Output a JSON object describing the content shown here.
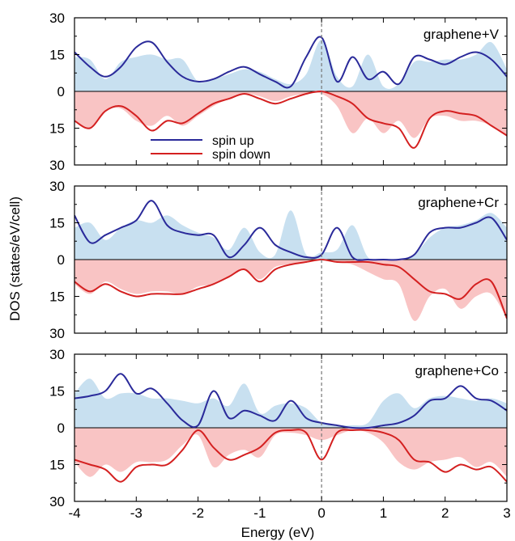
{
  "figure": {
    "ylabel": "DOS (states/eV/cell)",
    "xlabel": "Energy (eV)",
    "x_ticks": [
      "-4",
      "-3",
      "-2",
      "-1",
      "0",
      "1",
      "2",
      "3"
    ],
    "y_ticks": [
      "30",
      "15",
      "0",
      "15",
      "30"
    ],
    "legend": [
      {
        "label": "spin up",
        "color": "#2a2a9a"
      },
      {
        "label": "spin down",
        "color": "#d42020"
      }
    ],
    "colors": {
      "spin_up_line": "#2a2a9a",
      "spin_down_line": "#d42020",
      "up_fill": "#c8e0f0",
      "down_fill": "#f9c4c4",
      "fermi_line": "#777777"
    }
  },
  "chart_data": [
    {
      "type": "area",
      "label": "graphene+V",
      "xlim": [
        -4,
        3
      ],
      "ylim": [
        -30,
        30
      ],
      "y_tick_values": [
        30,
        15,
        0,
        -15,
        -30
      ],
      "x": [
        -4,
        -3.75,
        -3.5,
        -3.25,
        -3,
        -2.75,
        -2.5,
        -2.25,
        -2,
        -1.75,
        -1.5,
        -1.25,
        -1,
        -0.75,
        -0.5,
        -0.25,
        0,
        0.25,
        0.5,
        0.75,
        1,
        1.25,
        1.5,
        1.75,
        2,
        2.25,
        2.5,
        2.75,
        3
      ],
      "series": [
        {
          "name": "spin up",
          "values": [
            16,
            10,
            6,
            10,
            18,
            20,
            12,
            6,
            4,
            5,
            8,
            10,
            7,
            4,
            2,
            14,
            22,
            4,
            14,
            5,
            8,
            3,
            14,
            13,
            11,
            14,
            16,
            13,
            6
          ]
        },
        {
          "name": "spin down",
          "values": [
            -12,
            -15,
            -8,
            -6,
            -10,
            -16,
            -12,
            -13,
            -9,
            -5,
            -3,
            -1,
            -3,
            -5,
            -3,
            -1,
            0,
            -2,
            -5,
            -11,
            -13,
            -15,
            -23,
            -11,
            -8,
            -9,
            -10,
            -14,
            -18
          ]
        }
      ],
      "shaded_series": [
        {
          "values": [
            14,
            13,
            5,
            12,
            14,
            15,
            13,
            13,
            4,
            5,
            7,
            9,
            8,
            5,
            3,
            7,
            21,
            6,
            2,
            15,
            2,
            3,
            12,
            12,
            13,
            13,
            15,
            20,
            9
          ]
        },
        {
          "values": [
            -12,
            -15,
            -8,
            -7,
            -12,
            -14,
            -10,
            -14,
            -10,
            -6,
            -3,
            -1,
            -2,
            -4,
            -2,
            -1,
            -1,
            -6,
            -17,
            -11,
            -17,
            -12,
            -19,
            -11,
            -10,
            -12,
            -12,
            -14,
            -18
          ]
        }
      ]
    },
    {
      "type": "area",
      "label": "graphene+Cr",
      "xlim": [
        -4,
        3
      ],
      "ylim": [
        -30,
        30
      ],
      "y_tick_values": [
        30,
        15,
        0,
        -15,
        -30
      ],
      "x": [
        -4,
        -3.75,
        -3.5,
        -3.25,
        -3,
        -2.75,
        -2.5,
        -2.25,
        -2,
        -1.75,
        -1.5,
        -1.25,
        -1,
        -0.75,
        -0.5,
        -0.25,
        0,
        0.25,
        0.5,
        0.75,
        1,
        1.25,
        1.5,
        1.75,
        2,
        2.25,
        2.5,
        2.75,
        3
      ],
      "series": [
        {
          "name": "spin up",
          "values": [
            18,
            7,
            10,
            13,
            16,
            24,
            14,
            11,
            10,
            10,
            1,
            6,
            13,
            6,
            3,
            1,
            2,
            13,
            1,
            0,
            0,
            0,
            2,
            11,
            13,
            13,
            15,
            17,
            8
          ]
        },
        {
          "name": "spin down",
          "values": [
            -9,
            -13,
            -10,
            -13,
            -15,
            -14,
            -14,
            -14,
            -12,
            -10,
            -7,
            -4,
            -9,
            -4,
            -2,
            -1,
            0,
            -1,
            -1,
            -1,
            -2,
            -3,
            -8,
            -13,
            -14,
            -16,
            -10,
            -9,
            -24
          ]
        }
      ],
      "shaded_series": [
        {
          "values": [
            13,
            15,
            8,
            13,
            16,
            15,
            18,
            14,
            11,
            9,
            4,
            13,
            3,
            2,
            20,
            2,
            3,
            4,
            14,
            1,
            0,
            0,
            2,
            9,
            13,
            14,
            16,
            19,
            13
          ]
        },
        {
          "values": [
            -10,
            -14,
            -9,
            -12,
            -14,
            -13,
            -13,
            -14,
            -11,
            -10,
            -7,
            -4,
            -8,
            -3,
            -2,
            -1,
            0,
            -1,
            -2,
            -5,
            -8,
            -10,
            -25,
            -15,
            -12,
            -20,
            -15,
            -14,
            -24
          ]
        }
      ]
    },
    {
      "type": "area",
      "label": "graphene+Co",
      "xlim": [
        -4,
        3
      ],
      "ylim": [
        -30,
        30
      ],
      "y_tick_values": [
        30,
        15,
        0,
        -15,
        -30
      ],
      "x": [
        -4,
        -3.75,
        -3.5,
        -3.25,
        -3,
        -2.75,
        -2.5,
        -2.25,
        -2,
        -1.75,
        -1.5,
        -1.25,
        -1,
        -0.75,
        -0.5,
        -0.25,
        0,
        0.25,
        0.5,
        0.75,
        1,
        1.25,
        1.5,
        1.75,
        2,
        2.25,
        2.5,
        2.75,
        3
      ],
      "series": [
        {
          "name": "spin up",
          "values": [
            12,
            13,
            15,
            22,
            14,
            16,
            10,
            3,
            1,
            15,
            4,
            7,
            5,
            3,
            11,
            4,
            2,
            1,
            0,
            0,
            1,
            2,
            5,
            11,
            12,
            17,
            12,
            11,
            7
          ]
        },
        {
          "name": "spin down",
          "values": [
            -13,
            -15,
            -17,
            -22,
            -16,
            -15,
            -15,
            -9,
            -1,
            -8,
            -13,
            -11,
            -8,
            -2,
            -1,
            -2,
            -13,
            -2,
            -1,
            -1,
            -2,
            -5,
            -13,
            -14,
            -18,
            -15,
            -17,
            -16,
            -22
          ]
        }
      ],
      "shaded_series": [
        {
          "values": [
            14,
            20,
            12,
            14,
            14,
            12,
            12,
            11,
            10,
            12,
            9,
            18,
            6,
            9,
            10,
            8,
            2,
            1,
            1,
            2,
            11,
            14,
            8,
            12,
            13,
            12,
            11,
            12,
            10
          ]
        },
        {
          "values": [
            -14,
            -20,
            -15,
            -18,
            -14,
            -14,
            -13,
            -7,
            -3,
            -16,
            -11,
            -9,
            -12,
            -3,
            -2,
            -3,
            -5,
            -3,
            -1,
            -2,
            -6,
            -14,
            -17,
            -14,
            -13,
            -12,
            -16,
            -14,
            -20
          ]
        }
      ]
    }
  ]
}
